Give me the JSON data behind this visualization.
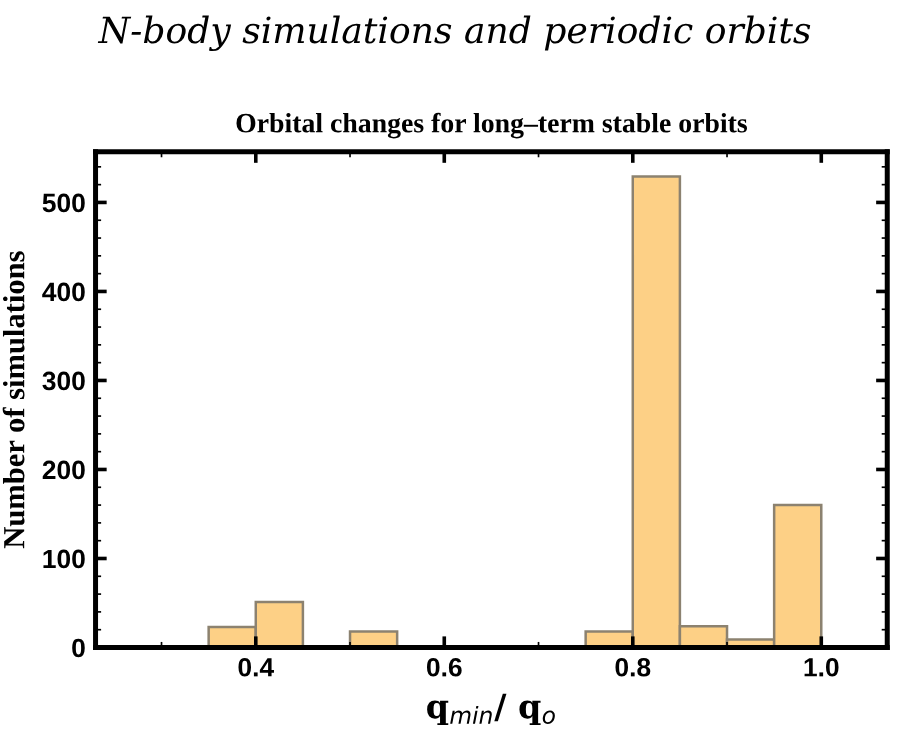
{
  "chart_data": {
    "type": "histogram",
    "title": "N-body simulations and periodic orbits",
    "subtitle": "Orbital changes for long–term stable orbits",
    "xlabel": "q$_{min}$/ q$_{o}$",
    "ylabel": "Number of simulations",
    "bins": [
      0.35,
      0.4,
      0.45,
      0.5,
      0.55,
      0.6,
      0.65,
      0.7,
      0.75,
      0.8,
      0.85,
      0.9,
      0.95,
      1.0,
      1.05
    ],
    "values": [
      23,
      51,
      0,
      18,
      0,
      0,
      0,
      0,
      18,
      529,
      24,
      9,
      160,
      null
    ],
    "color": "#fdd086",
    "xlim": [
      0.23,
      1.07
    ],
    "xticks": [
      {
        "value": 0.4,
        "label": "0.4"
      },
      {
        "value": 0.6,
        "label": "0.6"
      },
      {
        "value": 0.8,
        "label": "0.8"
      },
      {
        "value": 1.0,
        "label": "1.0"
      }
    ],
    "ylim": [
      0,
      557
    ],
    "yticks": [
      0,
      100,
      200,
      300,
      400,
      500
    ],
    "grid": false,
    "legend": false
  }
}
